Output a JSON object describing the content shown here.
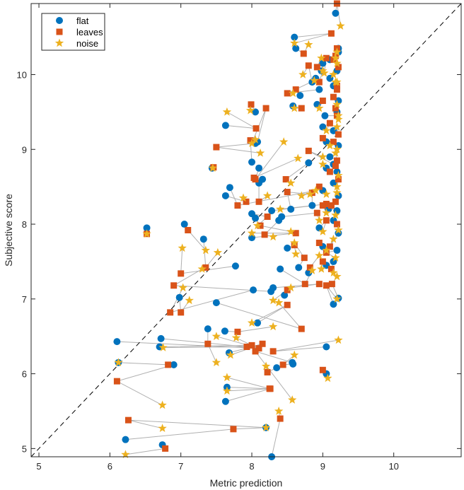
{
  "chart_data": {
    "type": "scatter",
    "title": "",
    "xlabel": "Metric prediction",
    "ylabel": "Subjective score",
    "xlim": [
      4.89,
      10.95
    ],
    "ylim": [
      4.89,
      10.95
    ],
    "xticks": [
      "5",
      "6",
      "7",
      "8",
      "9",
      "10"
    ],
    "yticks": [
      "5",
      "6",
      "7",
      "8",
      "9",
      "10"
    ],
    "grid": false,
    "legend_position": "top-left",
    "reference_line": {
      "type": "identity",
      "style": "dashed",
      "color": "#000000"
    },
    "connector_color": "#b0b0b0",
    "series": [
      {
        "name": "flat",
        "marker": "circle",
        "color": "#0072BD"
      },
      {
        "name": "leaves",
        "marker": "square",
        "color": "#D95319"
      },
      {
        "name": "noise",
        "marker": "star",
        "color": "#EDB120"
      }
    ],
    "groups": [
      [
        [
          9.18,
          10.82
        ],
        [
          9.2,
          10.95
        ],
        [
          9.25,
          10.65
        ]
      ],
      [
        [
          8.6,
          10.5
        ],
        [
          9.12,
          10.55
        ],
        [
          8.6,
          10.42
        ]
      ],
      [
        [
          8.62,
          10.35
        ],
        [
          8.73,
          10.28
        ],
        [
          8.8,
          10.4
        ]
      ],
      [
        [
          9.22,
          10.35
        ],
        [
          9.15,
          10.2
        ],
        [
          9.2,
          10.3
        ]
      ],
      [
        [
          8.98,
          10.05
        ],
        [
          9.05,
          10.22
        ],
        [
          9.02,
          10.02
        ]
      ],
      [
        [
          8.85,
          9.9
        ],
        [
          8.8,
          10.12
        ],
        [
          8.72,
          10.0
        ]
      ],
      [
        [
          9.1,
          9.95
        ],
        [
          9.2,
          9.85
        ],
        [
          9.2,
          9.9
        ]
      ],
      [
        [
          8.68,
          9.72
        ],
        [
          8.62,
          9.8
        ],
        [
          8.58,
          9.75
        ]
      ],
      [
        [
          8.95,
          9.8
        ],
        [
          8.5,
          9.75
        ],
        [
          8.88,
          9.92
        ]
      ],
      [
        [
          8.58,
          9.58
        ],
        [
          8.7,
          9.55
        ],
        [
          8.6,
          9.55
        ]
      ],
      [
        [
          9.03,
          9.45
        ],
        [
          9.2,
          9.45
        ],
        [
          9.22,
          9.4
        ]
      ],
      [
        [
          8.05,
          9.5
        ],
        [
          7.99,
          9.6
        ],
        [
          7.98,
          9.52
        ]
      ],
      [
        [
          7.63,
          9.32
        ],
        [
          8.06,
          9.28
        ],
        [
          7.65,
          9.5
        ]
      ],
      [
        [
          8.08,
          9.1
        ],
        [
          8.2,
          9.55
        ],
        [
          8.0,
          9.08
        ]
      ],
      [
        [
          8.05,
          9.08
        ],
        [
          7.5,
          9.03
        ],
        [
          8.12,
          8.95
        ]
      ],
      [
        [
          8.0,
          8.83
        ],
        [
          7.98,
          9.12
        ],
        [
          8.05,
          9.13
        ]
      ],
      [
        [
          8.1,
          8.75
        ],
        [
          8.05,
          8.6
        ],
        [
          8.45,
          9.1
        ]
      ],
      [
        [
          9.15,
          8.8
        ],
        [
          8.8,
          8.98
        ],
        [
          9.0,
          8.9
        ]
      ],
      [
        [
          8.15,
          8.6
        ],
        [
          8.03,
          8.62
        ],
        [
          8.65,
          8.88
        ]
      ],
      [
        [
          8.1,
          8.55
        ],
        [
          8.1,
          8.3
        ],
        [
          8.22,
          8.38
        ]
      ],
      [
        [
          7.44,
          8.75
        ],
        [
          7.46,
          8.76
        ],
        [
          7.45,
          8.75
        ]
      ],
      [
        [
          7.63,
          8.38
        ],
        [
          7.92,
          8.3
        ],
        [
          7.88,
          8.35
        ]
      ],
      [
        [
          7.69,
          8.49
        ],
        [
          7.8,
          8.25
        ],
        [
          8.9,
          8.45
        ]
      ],
      [
        [
          8.8,
          8.82
        ],
        [
          8.48,
          8.6
        ],
        [
          8.55,
          8.55
        ]
      ],
      [
        [
          8.55,
          8.2
        ],
        [
          8.5,
          8.43
        ],
        [
          8.82,
          8.4
        ]
      ],
      [
        [
          8.85,
          8.25
        ],
        [
          8.85,
          8.42
        ],
        [
          8.7,
          8.38
        ]
      ],
      [
        [
          8.28,
          8.18
        ],
        [
          9.05,
          8.27
        ],
        [
          8.4,
          8.2
        ]
      ],
      [
        [
          8.42,
          8.1
        ],
        [
          8.92,
          8.15
        ],
        [
          8.95,
          8.05
        ]
      ],
      [
        [
          8.0,
          8.14
        ],
        [
          8.22,
          8.1
        ],
        [
          8.08,
          7.98
        ]
      ],
      [
        [
          8.05,
          8.08
        ],
        [
          8.12,
          7.98
        ],
        [
          8.55,
          7.9
        ]
      ],
      [
        [
          8.38,
          8.05
        ],
        [
          8.18,
          7.86
        ],
        [
          8.3,
          7.83
        ]
      ],
      [
        [
          6.52,
          7.95
        ],
        [
          6.52,
          7.87
        ],
        [
          6.52,
          7.87
        ]
      ],
      [
        [
          7.05,
          8.0
        ],
        [
          7.1,
          7.92
        ],
        [
          7.35,
          7.65
        ]
      ],
      [
        [
          7.32,
          7.8
        ],
        [
          7.35,
          7.42
        ],
        [
          7.52,
          7.62
        ]
      ],
      [
        [
          8.0,
          7.82
        ],
        [
          8.62,
          7.88
        ],
        [
          8.0,
          7.88
        ]
      ],
      [
        [
          8.5,
          7.68
        ],
        [
          8.6,
          7.72
        ],
        [
          8.62,
          7.6
        ]
      ],
      [
        [
          8.66,
          7.42
        ],
        [
          8.74,
          7.55
        ],
        [
          8.6,
          7.75
        ]
      ],
      [
        [
          8.8,
          7.35
        ],
        [
          8.82,
          7.42
        ],
        [
          8.95,
          7.58
        ]
      ],
      [
        [
          8.4,
          7.4
        ],
        [
          8.75,
          7.2
        ],
        [
          8.85,
          7.38
        ]
      ],
      [
        [
          7.77,
          7.44
        ],
        [
          7.0,
          7.34
        ],
        [
          7.02,
          7.68
        ]
      ],
      [
        [
          8.27,
          7.1
        ],
        [
          6.9,
          7.18
        ],
        [
          7.3,
          7.4
        ]
      ],
      [
        [
          8.02,
          7.12
        ],
        [
          6.85,
          6.82
        ],
        [
          7.03,
          7.15
        ]
      ],
      [
        [
          8.3,
          7.15
        ],
        [
          8.95,
          7.2
        ],
        [
          8.55,
          7.15
        ]
      ],
      [
        [
          6.98,
          7.02
        ],
        [
          7.0,
          6.82
        ],
        [
          7.12,
          6.98
        ]
      ],
      [
        [
          8.46,
          7.05
        ],
        [
          8.5,
          7.12
        ],
        [
          8.3,
          6.98
        ]
      ],
      [
        [
          7.5,
          6.95
        ],
        [
          8.7,
          6.6
        ],
        [
          8.38,
          6.95
        ]
      ],
      [
        [
          8.08,
          6.68
        ],
        [
          8.5,
          6.92
        ],
        [
          8.0,
          6.68
        ]
      ],
      [
        [
          7.62,
          6.57
        ],
        [
          7.8,
          6.56
        ],
        [
          8.3,
          6.63
        ]
      ],
      [
        [
          6.72,
          6.47
        ],
        [
          7.93,
          6.36
        ],
        [
          6.75,
          6.35
        ]
      ],
      [
        [
          6.1,
          6.43
        ],
        [
          8.1,
          6.34
        ],
        [
          7.5,
          6.5
        ]
      ],
      [
        [
          6.7,
          6.36
        ],
        [
          8.0,
          6.38
        ],
        [
          7.78,
          6.48
        ]
      ],
      [
        [
          7.68,
          6.28
        ],
        [
          8.15,
          6.4
        ],
        [
          7.7,
          6.25
        ]
      ],
      [
        [
          9.05,
          6.36
        ],
        [
          8.3,
          6.3
        ],
        [
          9.22,
          6.45
        ]
      ],
      [
        [
          7.38,
          6.6
        ],
        [
          7.38,
          6.4
        ],
        [
          7.5,
          6.15
        ]
      ],
      [
        [
          8.58,
          6.13
        ],
        [
          8.44,
          6.12
        ],
        [
          8.6,
          6.25
        ]
      ],
      [
        [
          8.35,
          6.08
        ],
        [
          8.22,
          6.02
        ],
        [
          8.2,
          6.1
        ]
      ],
      [
        [
          7.65,
          5.82
        ],
        [
          8.25,
          5.8
        ],
        [
          7.65,
          5.95
        ]
      ],
      [
        [
          7.63,
          5.63
        ],
        [
          8.26,
          5.8
        ],
        [
          7.65,
          5.77
        ]
      ],
      [
        [
          6.9,
          6.12
        ],
        [
          6.1,
          5.9
        ],
        [
          6.74,
          5.58
        ]
      ],
      [
        [
          6.12,
          6.15
        ],
        [
          6.82,
          6.12
        ],
        [
          6.12,
          6.15
        ]
      ],
      [
        [
          8.57,
          6.15
        ],
        [
          8.05,
          6.3
        ],
        [
          8.57,
          5.65
        ]
      ],
      [
        [
          9.05,
          6.0
        ],
        [
          9.0,
          6.05
        ],
        [
          9.07,
          5.94
        ]
      ],
      [
        [
          8.2,
          5.28
        ],
        [
          6.26,
          5.38
        ],
        [
          6.74,
          5.27
        ]
      ],
      [
        [
          6.22,
          5.12
        ],
        [
          7.74,
          5.26
        ],
        [
          8.2,
          5.28
        ]
      ],
      [
        [
          6.74,
          5.05
        ],
        [
          6.78,
          5.0
        ],
        [
          6.22,
          4.92
        ]
      ],
      [
        [
          8.28,
          4.89
        ],
        [
          8.4,
          5.4
        ],
        [
          8.38,
          5.5
        ]
      ],
      [
        [
          9.15,
          6.93
        ],
        [
          9.05,
          7.18
        ],
        [
          9.2,
          7.0
        ]
      ],
      [
        [
          9.22,
          7.01
        ],
        [
          9.13,
          7.2
        ],
        [
          9.2,
          7.3
        ]
      ],
      [
        [
          9.15,
          7.5
        ],
        [
          9.12,
          7.4
        ],
        [
          9.15,
          7.35
        ]
      ],
      [
        [
          9.2,
          7.65
        ],
        [
          9.05,
          7.62
        ],
        [
          9.18,
          7.55
        ]
      ],
      [
        [
          9.22,
          7.88
        ],
        [
          9.1,
          7.7
        ],
        [
          9.15,
          7.8
        ]
      ],
      [
        [
          9.15,
          8.05
        ],
        [
          9.2,
          8.0
        ],
        [
          9.22,
          7.92
        ]
      ],
      [
        [
          9.2,
          8.18
        ],
        [
          9.12,
          8.25
        ],
        [
          9.18,
          8.12
        ]
      ],
      [
        [
          9.22,
          8.38
        ],
        [
          9.18,
          8.3
        ],
        [
          9.2,
          8.42
        ]
      ],
      [
        [
          9.15,
          8.55
        ],
        [
          9.22,
          8.6
        ],
        [
          9.2,
          8.5
        ]
      ],
      [
        [
          9.2,
          8.7
        ],
        [
          9.18,
          8.78
        ],
        [
          9.22,
          8.65
        ]
      ],
      [
        [
          9.1,
          8.9
        ],
        [
          9.2,
          8.85
        ],
        [
          9.18,
          8.95
        ]
      ],
      [
        [
          9.22,
          9.05
        ],
        [
          9.15,
          9.1
        ],
        [
          9.2,
          9.0
        ]
      ],
      [
        [
          9.15,
          9.25
        ],
        [
          9.22,
          9.2
        ],
        [
          9.2,
          9.3
        ]
      ],
      [
        [
          9.2,
          9.5
        ],
        [
          9.18,
          9.55
        ],
        [
          9.22,
          9.45
        ]
      ],
      [
        [
          9.22,
          9.65
        ],
        [
          9.15,
          9.7
        ],
        [
          9.2,
          9.6
        ]
      ],
      [
        [
          9.15,
          9.85
        ],
        [
          9.2,
          9.8
        ],
        [
          9.18,
          9.9
        ]
      ],
      [
        [
          9.2,
          10.05
        ],
        [
          9.22,
          10.1
        ],
        [
          9.15,
          10.0
        ]
      ],
      [
        [
          9.1,
          10.2
        ],
        [
          9.18,
          10.25
        ],
        [
          9.2,
          10.15
        ]
      ],
      [
        [
          9.22,
          10.3
        ],
        [
          9.2,
          10.35
        ],
        [
          9.18,
          10.22
        ]
      ],
      [
        [
          9.0,
          9.3
        ],
        [
          9.1,
          9.35
        ],
        [
          9.05,
          9.25
        ]
      ],
      [
        [
          9.05,
          9.1
        ],
        [
          9.0,
          9.15
        ],
        [
          9.1,
          9.05
        ]
      ],
      [
        [
          9.05,
          8.75
        ],
        [
          9.1,
          8.7
        ],
        [
          9.0,
          8.8
        ]
      ],
      [
        [
          9.0,
          8.45
        ],
        [
          8.95,
          8.5
        ],
        [
          9.05,
          8.4
        ]
      ],
      [
        [
          9.08,
          8.2
        ],
        [
          9.0,
          8.25
        ],
        [
          9.05,
          8.15
        ]
      ],
      [
        [
          8.95,
          7.95
        ],
        [
          9.05,
          8.05
        ],
        [
          9.0,
          7.9
        ]
      ],
      [
        [
          9.0,
          7.7
        ],
        [
          8.95,
          7.75
        ],
        [
          9.05,
          7.65
        ]
      ],
      [
        [
          9.05,
          7.45
        ],
        [
          9.0,
          7.5
        ],
        [
          8.98,
          7.4
        ]
      ],
      [
        [
          8.92,
          9.6
        ],
        [
          9.0,
          9.65
        ],
        [
          8.95,
          9.55
        ]
      ],
      [
        [
          8.9,
          9.95
        ],
        [
          8.95,
          9.9
        ],
        [
          9.0,
          10.05
        ]
      ],
      [
        [
          9.0,
          10.15
        ],
        [
          8.92,
          10.1
        ],
        [
          8.98,
          10.22
        ]
      ]
    ]
  }
}
